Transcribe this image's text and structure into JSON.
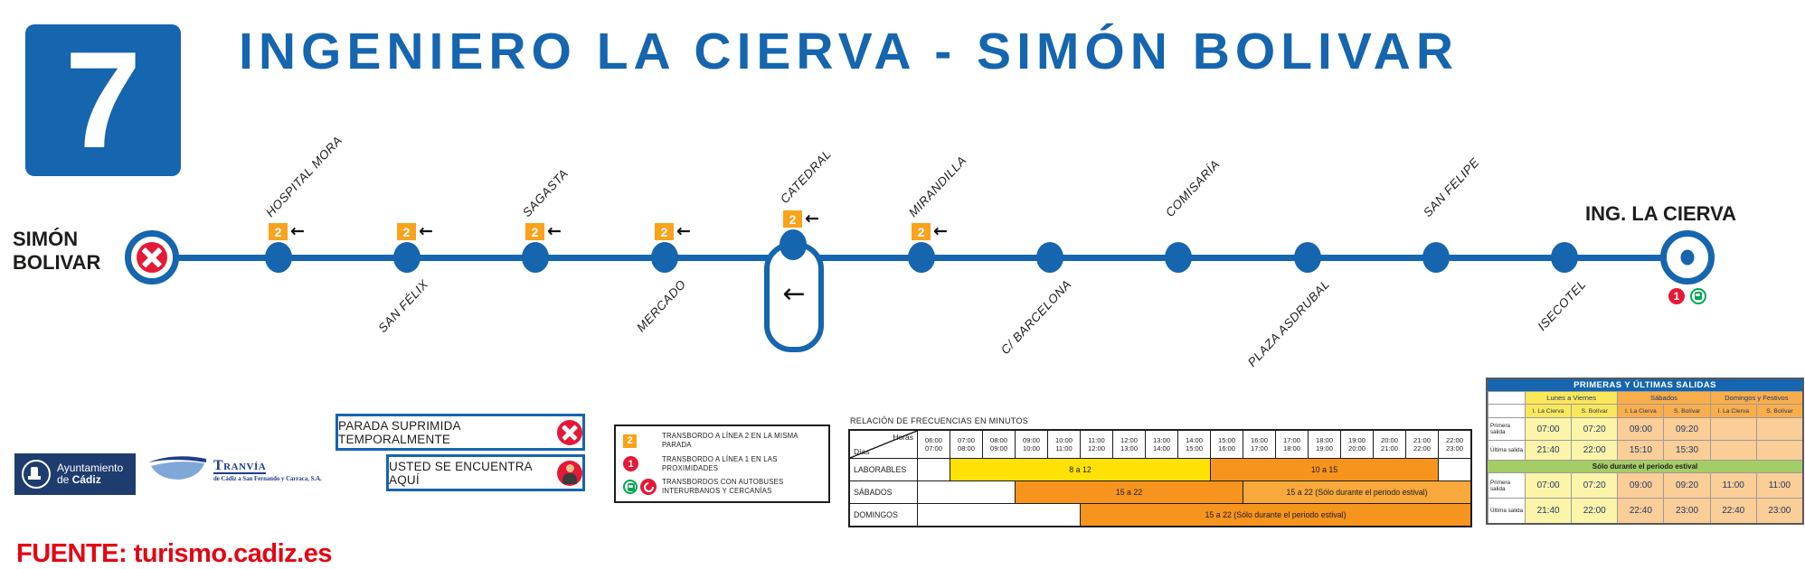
{
  "line": {
    "number": "7",
    "title": "INGENIERO LA CIERVA - SIMÓN BOLIVAR"
  },
  "symbols": {
    "left_arrow": "←"
  },
  "colors": {
    "blue": "#1565AF",
    "orange_badge": "#F9A21C",
    "red": "#E51937",
    "freq_yellow": "#FFE105",
    "freq_orange": "#F7941E",
    "freq_orange_light": "#F9A83C",
    "estival_green": "#A5CD66",
    "pale_yellow": "#FCF5A9",
    "pale_orange": "#FBCD97",
    "group_yellow": "#FBE75A",
    "group_orange": "#F9AE4B",
    "navy": "#1F3864",
    "source_red": "#E30613",
    "green_bus": "#00A651",
    "logo_navy": "#1E3C6E"
  },
  "route": {
    "start_terminus": {
      "name": "SIMÓN BOLIVAR",
      "label_lines": [
        "SIMÓN",
        "BOLIVAR"
      ],
      "suppressed": true
    },
    "end_terminus": {
      "name": "ING. LA CIERVA",
      "transfer_badge": "1",
      "interurban_transfer": true
    },
    "transfer_badge_label": "2",
    "stops": [
      {
        "name": "HOSPITAL MORA",
        "side": "above",
        "transfer2": true,
        "loop": false
      },
      {
        "name": "SAN FÉLIX",
        "side": "below",
        "transfer2": true,
        "loop": false
      },
      {
        "name": "SAGASTA",
        "side": "above",
        "transfer2": true,
        "loop": false
      },
      {
        "name": "MERCADO",
        "side": "below",
        "transfer2": true,
        "loop": false
      },
      {
        "name": "CATEDRAL",
        "side": "above",
        "transfer2": true,
        "loop": true
      },
      {
        "name": "MIRANDILLA",
        "side": "above",
        "transfer2": true,
        "loop": false
      },
      {
        "name": "C/ BARCELONA",
        "side": "below",
        "transfer2": false,
        "loop": false
      },
      {
        "name": "COMISARÍA",
        "side": "above",
        "transfer2": false,
        "loop": false
      },
      {
        "name": "PLAZA ASDRUBAL",
        "side": "below",
        "transfer2": false,
        "loop": false
      },
      {
        "name": "SAN FELIPE",
        "side": "above",
        "transfer2": false,
        "loop": false
      },
      {
        "name": "ISECOTEL",
        "side": "below",
        "transfer2": false,
        "loop": false
      }
    ]
  },
  "legend_boxes": {
    "suppressed": "PARADA SUPRIMIDA TEMPORALMENTE",
    "you_are_here": "USTED SE ENCUENTRA AQUÍ"
  },
  "transfer_legend": {
    "items": [
      {
        "icon": "line-2-square",
        "label": "TRANSBORDO A LÍNEA 2 EN LA MISMA PARADA",
        "badge": "2"
      },
      {
        "icon": "line-1-circle",
        "label": "TRANSBORDO A LÍNEA 1 EN LAS PROXIMIDADES",
        "badge": "1"
      },
      {
        "icon": "bus-and-rotate",
        "label": "TRANSBORDOS CON AUTOBUSES INTERURBANOS Y CERCANÍAS",
        "badge": ""
      }
    ]
  },
  "frequency_table": {
    "title": "RELACIÓN DE FRECUENCIAS EN MINUTOS",
    "corner": {
      "top": "Horas",
      "bottom": "Días"
    },
    "hours": [
      "06:00",
      "07:00",
      "08:00",
      "09:00",
      "10:00",
      "11:00",
      "12:00",
      "13:00",
      "14:00",
      "15:00",
      "16:00",
      "17:00",
      "18:00",
      "19:00",
      "20:00",
      "21:00",
      "22:00",
      "23:00"
    ],
    "rows": [
      {
        "label": "LABORABLES",
        "spans": [
          {
            "cols": 1,
            "color": "white",
            "text": ""
          },
          {
            "cols": 8,
            "color": "yellow",
            "text": "8 a 12"
          },
          {
            "cols": 7,
            "color": "orange",
            "text": "10 a 15"
          },
          {
            "cols": 1,
            "color": "white",
            "text": ""
          }
        ]
      },
      {
        "label": "SÁBADOS",
        "spans": [
          {
            "cols": 3,
            "color": "white",
            "text": ""
          },
          {
            "cols": 7,
            "color": "orange",
            "text": "15 a 22"
          },
          {
            "cols": 7,
            "color": "orange_light",
            "text": "15 a 22 (Sólo durante el periodo estival)"
          }
        ]
      },
      {
        "label": "DOMINGOS",
        "spans": [
          {
            "cols": 5,
            "color": "white",
            "text": ""
          },
          {
            "cols": 12,
            "color": "orange",
            "text": "15 a 22 (Sólo durante el periodo estival)"
          }
        ]
      }
    ]
  },
  "departures_table": {
    "title": "PRIMERAS Y ÚLTIMAS SALIDAS",
    "groups": [
      "Lunes a Viernes",
      "Sábados",
      "Domingos y Festivos"
    ],
    "subheaders": [
      "I. La Cierva",
      "S. Bolívar",
      "I. La Cierva",
      "S. Bolívar",
      "I. La Cierva",
      "S. Bolívar"
    ],
    "row_labels": {
      "first": "Primera salida",
      "last": "Última salida"
    },
    "estival_note": "Sólo durante el periodo estival",
    "regular": {
      "first": [
        "07:00",
        "07:20",
        "09:00",
        "09:20",
        "",
        ""
      ],
      "last": [
        "21:40",
        "22:00",
        "15:10",
        "15:30",
        "",
        ""
      ]
    },
    "estival": {
      "first": [
        "07:00",
        "07:20",
        "09:00",
        "09:20",
        "11:00",
        "11:00"
      ],
      "last": [
        "21:40",
        "22:00",
        "22:40",
        "23:00",
        "22:40",
        "23:00"
      ]
    }
  },
  "logos": {
    "ayuntamiento": {
      "prefix": "Ayuntamiento de ",
      "bold": "Cádiz"
    },
    "tranvia": {
      "name": "Tranvía",
      "subtitle": "de Cádiz a San Fernando y Carraca, S.A."
    }
  },
  "footer": {
    "source": "FUENTE: turismo.cadiz.es"
  }
}
